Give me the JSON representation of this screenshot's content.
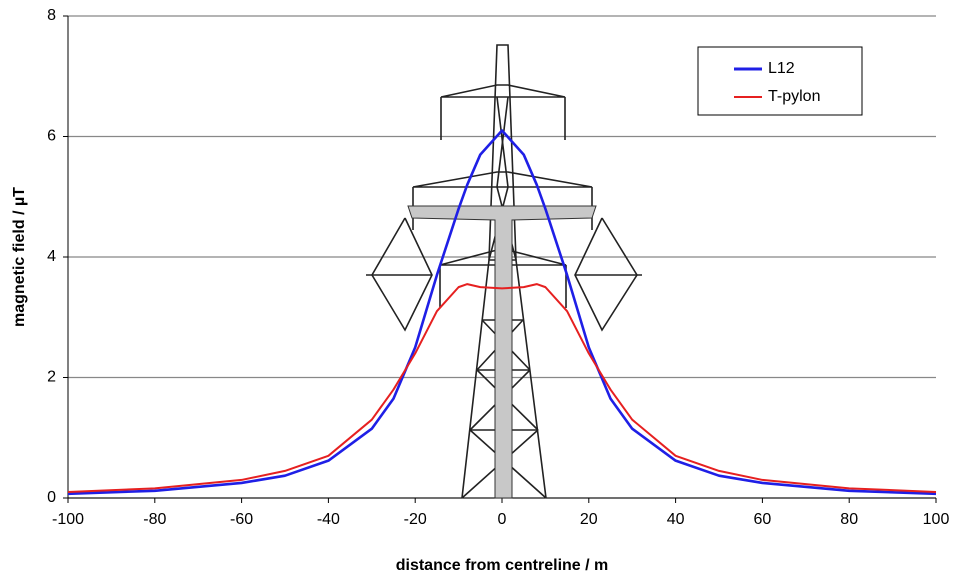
{
  "chart_data": {
    "type": "line",
    "x_label": "distance from centreline / m",
    "y_label": "magnetic field / µT",
    "xlim": [
      -100,
      100
    ],
    "xticks": [
      -100,
      -80,
      -60,
      -40,
      -20,
      0,
      20,
      40,
      60,
      80,
      100
    ],
    "ylim": [
      0,
      8
    ],
    "yticks": [
      0,
      2,
      4,
      6,
      8
    ],
    "grid": true,
    "legend": "upper right",
    "x": [
      -100,
      -80,
      -60,
      -50,
      -40,
      -30,
      -25,
      -20,
      -15,
      -10,
      -8,
      -5,
      0,
      5,
      8,
      10,
      15,
      20,
      25,
      30,
      40,
      50,
      60,
      80,
      100
    ],
    "series": [
      {
        "name": "L12",
        "color": "#1f1fe6",
        "values": [
          0.07,
          0.12,
          0.25,
          0.37,
          0.62,
          1.15,
          1.65,
          2.5,
          3.7,
          4.8,
          5.2,
          5.7,
          6.1,
          5.7,
          5.2,
          4.8,
          3.7,
          2.5,
          1.65,
          1.15,
          0.62,
          0.37,
          0.25,
          0.12,
          0.07
        ]
      },
      {
        "name": "T-pylon",
        "color": "#e62020",
        "values": [
          0.1,
          0.16,
          0.3,
          0.45,
          0.7,
          1.3,
          1.8,
          2.4,
          3.1,
          3.5,
          3.55,
          3.5,
          3.48,
          3.5,
          3.55,
          3.5,
          3.1,
          2.4,
          1.8,
          1.3,
          0.7,
          0.45,
          0.3,
          0.16,
          0.1
        ]
      }
    ]
  }
}
